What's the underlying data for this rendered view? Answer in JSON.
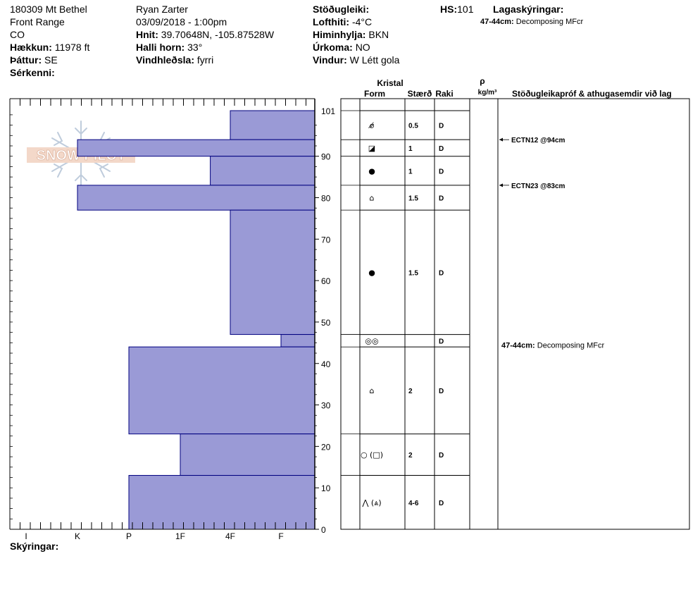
{
  "header": {
    "col1": {
      "line1": "180309 Mt Bethel",
      "line2": "Front Range",
      "line3": "CO",
      "elev_label": "Hækkun:",
      "elev_value": "11978 ft",
      "aspect_label": "Þáttur:",
      "aspect_value": "SE",
      "features_label": "Sérkenni:"
    },
    "col2": {
      "observer": "Ryan Zarter",
      "datetime": "03/09/2018 - 1:00pm",
      "coords_label": "Hnit:",
      "coords_value": "39.70648N, -105.87528W",
      "slope_label": "Halli horn:",
      "slope_value": "33°",
      "wind_load_label": "Vindhleðsla:",
      "wind_load_value": "fyrri"
    },
    "col3": {
      "stability_label": "Stöðugleiki:",
      "stability_value": "",
      "air_temp_label": "Lofthiti:",
      "air_temp_value": "-4°C",
      "sky_label": "Himinhylja:",
      "sky_value": "BKN",
      "precip_label": "Úrkoma:",
      "precip_value": "NO",
      "wind_label": "Vindur:",
      "wind_value": "W Létt gola"
    },
    "col4": {
      "hs_label": "HS:",
      "hs_value": "101"
    },
    "col5": {
      "layer_notes_label": "Lagaskýringar:",
      "note_depth": "47-44cm:",
      "note_text": "Decomposing MFcr"
    }
  },
  "logo_text": "SNOW PILOT",
  "footer": {
    "notes_label": "Skýringar:"
  },
  "table_headers": {
    "crystal": "Kristal",
    "form": "Form",
    "size": "Stærð",
    "moisture": "Raki",
    "rho": "ρ",
    "density_unit": "kg/m³",
    "tests": "Stöðugleikapróf & athugasemdir við lag"
  },
  "chart_data": {
    "type": "bar",
    "orientation": "horizontal",
    "hardness_axis": [
      "I",
      "K",
      "P",
      "1F",
      "4F",
      "F"
    ],
    "ylim": [
      0,
      101
    ],
    "y_ticks": [
      0,
      10,
      20,
      30,
      40,
      50,
      60,
      70,
      80,
      90
    ],
    "top_label": "101",
    "color": "#9a9ad6",
    "edge_color": "#00007f",
    "layers": [
      {
        "top": 101,
        "bottom": 94,
        "hardness_index": 4.0,
        "form": "⌀̸",
        "size": "0.5",
        "moisture": "D"
      },
      {
        "top": 94,
        "bottom": 90,
        "hardness_index": 1.0,
        "form": "◪",
        "size": "1",
        "moisture": "D"
      },
      {
        "top": 90,
        "bottom": 83,
        "hardness_index": 3.6,
        "form": "●",
        "size": "1",
        "moisture": "D"
      },
      {
        "top": 83,
        "bottom": 77,
        "hardness_index": 1.0,
        "form": "⌂",
        "size": "1.5",
        "moisture": "D"
      },
      {
        "top": 77,
        "bottom": 47,
        "hardness_index": 4.0,
        "form": "●",
        "size": "1.5",
        "moisture": "D"
      },
      {
        "top": 47,
        "bottom": 44,
        "hardness_index": 5.0,
        "form": "◎◎",
        "size": "",
        "moisture": "D"
      },
      {
        "top": 44,
        "bottom": 23,
        "hardness_index": 2.0,
        "form": "⌂",
        "size": "2",
        "moisture": "D"
      },
      {
        "top": 23,
        "bottom": 13,
        "hardness_index": 3.0,
        "form": "○ (□)",
        "size": "2",
        "moisture": "D"
      },
      {
        "top": 13,
        "bottom": 0,
        "hardness_index": 2.0,
        "form": "⋀ (⩓)",
        "size": "4-6",
        "moisture": "D"
      }
    ],
    "tests": [
      {
        "depth": 94,
        "text": "ECTN12 @94cm"
      },
      {
        "depth": 83,
        "text": "ECTN23 @83cm"
      }
    ],
    "comments": [
      {
        "depth_top": 47,
        "depth_label": "47-44cm:",
        "text": "Decomposing MFcr"
      }
    ]
  }
}
